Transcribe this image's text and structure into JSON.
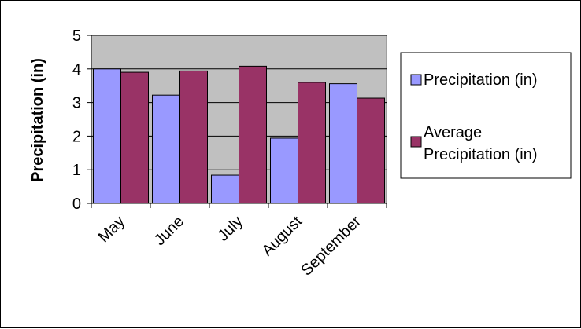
{
  "chart_data": {
    "type": "bar",
    "categories": [
      "May",
      "June",
      "July",
      "August",
      "September"
    ],
    "series": [
      {
        "name": "Precipitation (in)",
        "color": "#9999ff",
        "values": [
          4.0,
          3.22,
          0.84,
          1.94,
          3.56
        ]
      },
      {
        "name": "Average Precipitation (in)",
        "color": "#993366",
        "values": [
          3.9,
          3.94,
          4.08,
          3.6,
          3.13
        ]
      }
    ],
    "ylabel": "Precipitation (in)",
    "xlabel": "",
    "ylim": [
      0,
      5
    ],
    "yticks": [
      0,
      1,
      2,
      3,
      4,
      5
    ],
    "grid": true,
    "plot_background": "#c0c0c0",
    "legend_position": "right",
    "legend_labels": [
      [
        "Precipitation (in)"
      ],
      [
        "Average",
        "Precipitation (in)"
      ]
    ]
  }
}
